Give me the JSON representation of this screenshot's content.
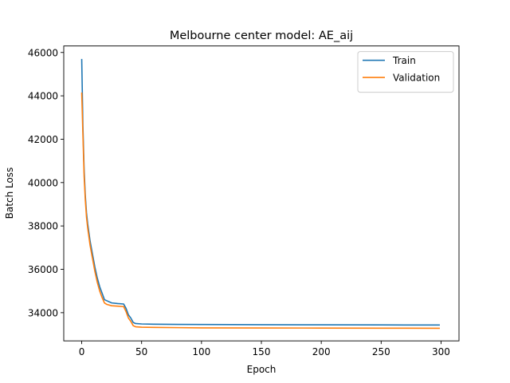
{
  "chart_data": {
    "type": "line",
    "title": "Melbourne center model:  AE_aij",
    "xlabel": "Epoch",
    "ylabel": "Batch Loss",
    "xlim": [
      -15,
      315
    ],
    "ylim": [
      32700,
      46300
    ],
    "xticks": [
      0,
      50,
      100,
      150,
      200,
      250,
      300
    ],
    "yticks": [
      34000,
      36000,
      38000,
      40000,
      42000,
      44000,
      46000
    ],
    "grid": false,
    "legend_position": "top-right",
    "series": [
      {
        "name": "Train",
        "color": "#1f77b4",
        "x": [
          0,
          1,
          2,
          3,
          4,
          5,
          7,
          9,
          11,
          13,
          15,
          17,
          19,
          21,
          25,
          30,
          35,
          37,
          39,
          41,
          43,
          45,
          50,
          60,
          80,
          100,
          150,
          200,
          250,
          299
        ],
        "y": [
          45700,
          42600,
          40600,
          39400,
          38600,
          38100,
          37300,
          36700,
          36100,
          35600,
          35200,
          34900,
          34600,
          34550,
          34450,
          34420,
          34400,
          34200,
          33900,
          33750,
          33550,
          33500,
          33480,
          33470,
          33460,
          33455,
          33445,
          33440,
          33435,
          33430
        ]
      },
      {
        "name": "Validation",
        "color": "#ff7f0e",
        "x": [
          0,
          1,
          2,
          3,
          4,
          5,
          7,
          9,
          11,
          13,
          15,
          17,
          19,
          21,
          25,
          30,
          35,
          37,
          39,
          41,
          43,
          45,
          50,
          60,
          80,
          100,
          150,
          200,
          250,
          299
        ],
        "y": [
          44150,
          42200,
          40300,
          39200,
          38400,
          37900,
          37100,
          36500,
          35900,
          35400,
          35000,
          34700,
          34450,
          34380,
          34320,
          34300,
          34280,
          34050,
          33750,
          33600,
          33400,
          33350,
          33330,
          33320,
          33310,
          33300,
          33295,
          33290,
          33285,
          33280
        ]
      }
    ]
  }
}
